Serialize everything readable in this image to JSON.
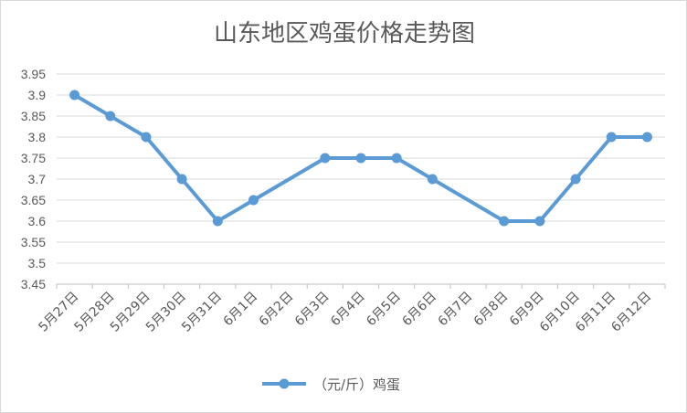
{
  "chart_data": {
    "type": "line",
    "title": "山东地区鸡蛋价格走势图",
    "xlabel": "",
    "ylabel": "",
    "categories": [
      "5月27日",
      "5月28日",
      "5月29日",
      "5月30日",
      "5月31日",
      "6月1日",
      "6月2日",
      "6月3日",
      "6月4日",
      "6月5日",
      "6月6日",
      "6月7日",
      "6月8日",
      "6月9日",
      "6月10日",
      "6月11日",
      "6月12日"
    ],
    "series": [
      {
        "name": "（元/斤）鸡蛋",
        "values": [
          3.9,
          3.85,
          3.8,
          3.7,
          3.6,
          3.65,
          null,
          3.75,
          3.75,
          3.75,
          3.7,
          null,
          3.6,
          3.6,
          3.7,
          3.8,
          3.8
        ],
        "color": "#5b9bd5"
      }
    ],
    "ylim": [
      3.45,
      3.95
    ],
    "yticks": [
      "3.45",
      "3.5",
      "3.55",
      "3.6",
      "3.65",
      "3.7",
      "3.75",
      "3.8",
      "3.85",
      "3.9",
      "3.95"
    ],
    "grid": true,
    "legend_position": "bottom"
  }
}
